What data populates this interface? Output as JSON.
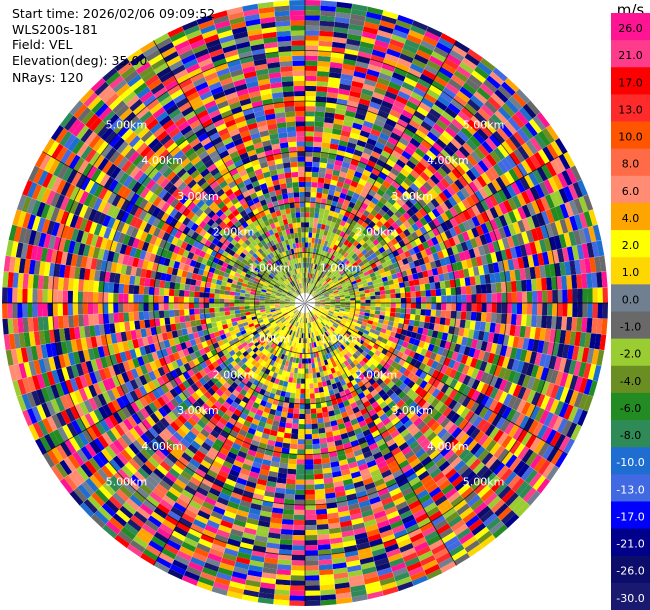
{
  "info": {
    "start_time": "Start time: 2026/02/06 09:09:52",
    "instrument": "WLS200s-181",
    "field": "Field: VEL",
    "elevation": "Elevation(deg): 35.00",
    "nrays": "NRays: 120"
  },
  "chart_data": {
    "type": "heatmap",
    "projection": "polar-ppi",
    "field": "VEL",
    "units": "m/s",
    "n_rays": 120,
    "elevation_deg": 35.0,
    "ring_labels": [
      "1.00km",
      "2.00km",
      "3.00km",
      "4.00km",
      "5.00km"
    ],
    "colorbar": {
      "label": "m/s",
      "ticks": [
        "26.0",
        "21.0",
        "17.0",
        "13.0",
        "10.0",
        "8.0",
        "6.0",
        "4.0",
        "2.0",
        "1.0",
        "0.0",
        "-1.0",
        "-2.0",
        "-4.0",
        "-6.0",
        "-8.0",
        "-10.0",
        "-13.0",
        "-17.0",
        "-21.0",
        "-26.0",
        "-30.0"
      ],
      "colors": [
        "#ff1493",
        "#ff3c8c",
        "#ff0000",
        "#ff2a2a",
        "#ff5500",
        "#ff6b47",
        "#ff8c73",
        "#ffa500",
        "#ffff00",
        "#ffd700",
        "#708090",
        "#696969",
        "#9acd32",
        "#6b8e23",
        "#228b22",
        "#2e8b57",
        "#1e6ed2",
        "#4169e1",
        "#0000ff",
        "#00008b",
        "#0c0c6b",
        "#191970"
      ]
    }
  }
}
